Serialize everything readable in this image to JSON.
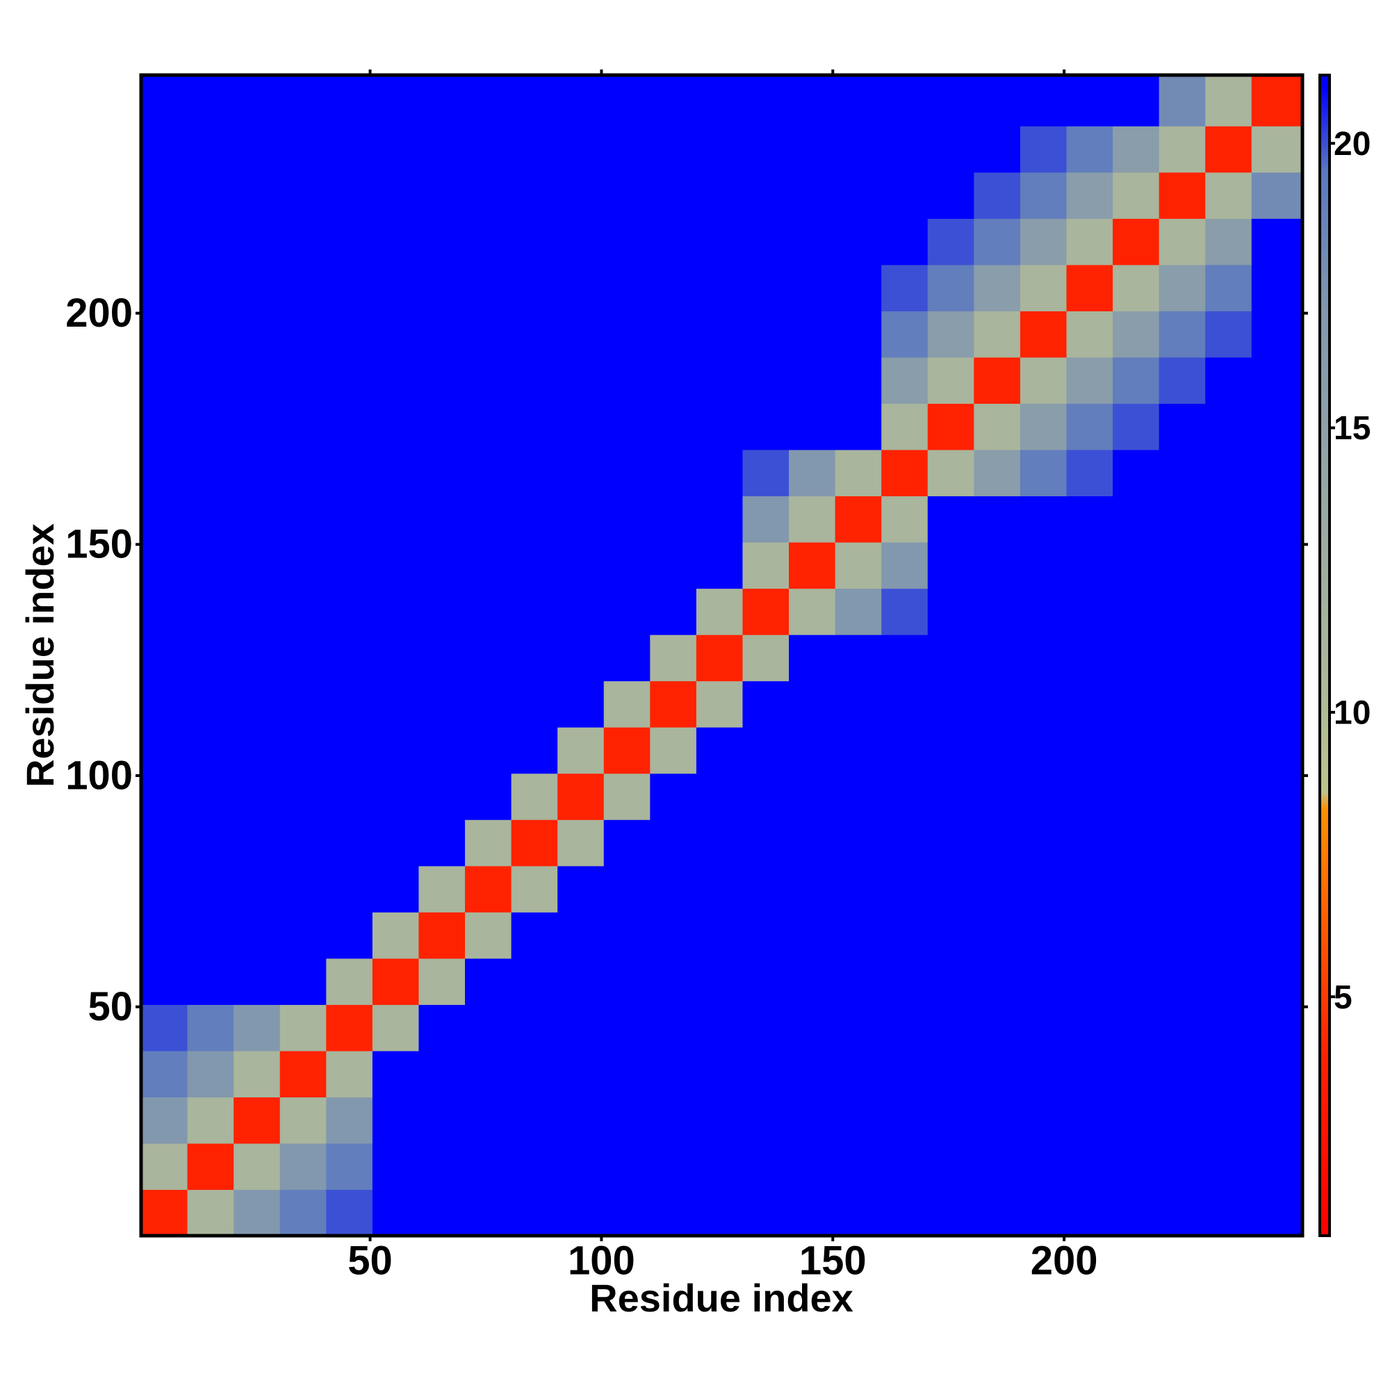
{
  "chart_data": {
    "type": "heatmap",
    "xlabel": "Residue index",
    "ylabel": "Residue index",
    "x_edges": [
      0.5,
      10.5,
      20.5,
      30.5,
      40.5,
      50.5,
      60.5,
      70.5,
      80.5,
      90.5,
      100.5,
      110.5,
      120.5,
      130.5,
      140.5,
      150.5,
      160.5,
      170.5,
      180.5,
      190.5,
      200.5,
      210.5,
      220.5,
      230.5,
      240.5,
      251.5
    ],
    "y_edges": [
      0.5,
      10.5,
      20.5,
      30.5,
      40.5,
      50.5,
      60.5,
      70.5,
      80.5,
      90.5,
      100.5,
      110.5,
      120.5,
      130.5,
      140.5,
      150.5,
      160.5,
      170.5,
      180.5,
      190.5,
      200.5,
      210.5,
      220.5,
      230.5,
      240.5,
      251.5
    ],
    "xlim": [
      0.5,
      251.5
    ],
    "ylim": [
      0.5,
      251.5
    ],
    "xticks": [
      50,
      100,
      150,
      200
    ],
    "yticks": [
      50,
      100,
      150,
      200
    ],
    "clim": [
      0.8,
      21.2
    ],
    "cticks": [
      5,
      10,
      15,
      20
    ],
    "colorscale": [
      [
        0.8,
        "#ff0000"
      ],
      [
        4,
        "#ff2200"
      ],
      [
        6,
        "#ff5500"
      ],
      [
        8.3,
        "#ff9000"
      ],
      [
        8.6,
        "#bcc48c"
      ],
      [
        11,
        "#a9b59c"
      ],
      [
        17,
        "#8298ae"
      ],
      [
        19.5,
        "#5a78c0"
      ],
      [
        21,
        "#0000ff"
      ],
      [
        21.2,
        "#0000ff"
      ]
    ],
    "values": [
      [
        4,
        11,
        17,
        19,
        20,
        21,
        21,
        21,
        21,
        21,
        21,
        21,
        21,
        21,
        21,
        21,
        21,
        21,
        21,
        21,
        21,
        21,
        21,
        21,
        21
      ],
      [
        11,
        4,
        11,
        17,
        19,
        21,
        21,
        21,
        21,
        21,
        21,
        21,
        21,
        21,
        21,
        21,
        21,
        21,
        21,
        21,
        21,
        21,
        21,
        21,
        21
      ],
      [
        17,
        11,
        4,
        11,
        17,
        21,
        21,
        21,
        21,
        21,
        21,
        21,
        21,
        21,
        21,
        21,
        21,
        21,
        21,
        21,
        21,
        21,
        21,
        21,
        21
      ],
      [
        19,
        17,
        11,
        4,
        11,
        21,
        21,
        21,
        21,
        21,
        21,
        21,
        21,
        21,
        21,
        21,
        21,
        21,
        21,
        21,
        21,
        21,
        21,
        21,
        21
      ],
      [
        20,
        19,
        17,
        11,
        4,
        11,
        21,
        21,
        21,
        21,
        21,
        21,
        21,
        21,
        21,
        21,
        21,
        21,
        21,
        21,
        21,
        21,
        21,
        21,
        21
      ],
      [
        21,
        21,
        21,
        21,
        11,
        4,
        11,
        21,
        21,
        21,
        21,
        21,
        21,
        21,
        21,
        21,
        21,
        21,
        21,
        21,
        21,
        21,
        21,
        21,
        21
      ],
      [
        21,
        21,
        21,
        21,
        21,
        11,
        4,
        11,
        21,
        21,
        21,
        21,
        21,
        21,
        21,
        21,
        21,
        21,
        21,
        21,
        21,
        21,
        21,
        21,
        21
      ],
      [
        21,
        21,
        21,
        21,
        21,
        21,
        11,
        4,
        11,
        21,
        21,
        21,
        21,
        21,
        21,
        21,
        21,
        21,
        21,
        21,
        21,
        21,
        21,
        21,
        21
      ],
      [
        21,
        21,
        21,
        21,
        21,
        21,
        21,
        11,
        4,
        11,
        21,
        21,
        21,
        21,
        21,
        21,
        21,
        21,
        21,
        21,
        21,
        21,
        21,
        21,
        21
      ],
      [
        21,
        21,
        21,
        21,
        21,
        21,
        21,
        21,
        11,
        4,
        11,
        21,
        21,
        21,
        21,
        21,
        21,
        21,
        21,
        21,
        21,
        21,
        21,
        21,
        21
      ],
      [
        21,
        21,
        21,
        21,
        21,
        21,
        21,
        21,
        21,
        11,
        4,
        11,
        21,
        21,
        21,
        21,
        21,
        21,
        21,
        21,
        21,
        21,
        21,
        21,
        21
      ],
      [
        21,
        21,
        21,
        21,
        21,
        21,
        21,
        21,
        21,
        21,
        11,
        4,
        11,
        21,
        21,
        21,
        21,
        21,
        21,
        21,
        21,
        21,
        21,
        21,
        21
      ],
      [
        21,
        21,
        21,
        21,
        21,
        21,
        21,
        21,
        21,
        21,
        21,
        11,
        4,
        11,
        21,
        21,
        21,
        21,
        21,
        21,
        21,
        21,
        21,
        21,
        21
      ],
      [
        21,
        21,
        21,
        21,
        21,
        21,
        21,
        21,
        21,
        21,
        21,
        21,
        11,
        4,
        11,
        17,
        20,
        21,
        21,
        21,
        21,
        21,
        21,
        21,
        21
      ],
      [
        21,
        21,
        21,
        21,
        21,
        21,
        21,
        21,
        21,
        21,
        21,
        21,
        21,
        11,
        4,
        11,
        17,
        21,
        21,
        21,
        21,
        21,
        21,
        21,
        21
      ],
      [
        21,
        21,
        21,
        21,
        21,
        21,
        21,
        21,
        21,
        21,
        21,
        21,
        21,
        17,
        11,
        4,
        11,
        21,
        21,
        21,
        21,
        21,
        21,
        21,
        21
      ],
      [
        21,
        21,
        21,
        21,
        21,
        21,
        21,
        21,
        21,
        21,
        21,
        21,
        21,
        20,
        17,
        11,
        4,
        11,
        16,
        19,
        20,
        21,
        21,
        21,
        21
      ],
      [
        21,
        21,
        21,
        21,
        21,
        21,
        21,
        21,
        21,
        21,
        21,
        21,
        21,
        21,
        21,
        21,
        11,
        4,
        11,
        16,
        19,
        20,
        21,
        21,
        21
      ],
      [
        21,
        21,
        21,
        21,
        21,
        21,
        21,
        21,
        21,
        21,
        21,
        21,
        21,
        21,
        21,
        21,
        16,
        11,
        4,
        11,
        16,
        19,
        20,
        21,
        21
      ],
      [
        21,
        21,
        21,
        21,
        21,
        21,
        21,
        21,
        21,
        21,
        21,
        21,
        21,
        21,
        21,
        21,
        19,
        16,
        11,
        4,
        11,
        16,
        19,
        20,
        21
      ],
      [
        21,
        21,
        21,
        21,
        21,
        21,
        21,
        21,
        21,
        21,
        21,
        21,
        21,
        21,
        21,
        21,
        20,
        19,
        16,
        11,
        4,
        11,
        16,
        19,
        21
      ],
      [
        21,
        21,
        21,
        21,
        21,
        21,
        21,
        21,
        21,
        21,
        21,
        21,
        21,
        21,
        21,
        21,
        21,
        20,
        19,
        16,
        11,
        4,
        11,
        16,
        21
      ],
      [
        21,
        21,
        21,
        21,
        21,
        21,
        21,
        21,
        21,
        21,
        21,
        21,
        21,
        21,
        21,
        21,
        21,
        21,
        20,
        19,
        16,
        11,
        4,
        11,
        18
      ],
      [
        21,
        21,
        21,
        21,
        21,
        21,
        21,
        21,
        21,
        21,
        21,
        21,
        21,
        21,
        21,
        21,
        21,
        21,
        21,
        20,
        19,
        16,
        11,
        4,
        11
      ],
      [
        21,
        21,
        21,
        21,
        21,
        21,
        21,
        21,
        21,
        21,
        21,
        21,
        21,
        21,
        21,
        21,
        21,
        21,
        21,
        21,
        21,
        21,
        18,
        11,
        4
      ]
    ]
  }
}
